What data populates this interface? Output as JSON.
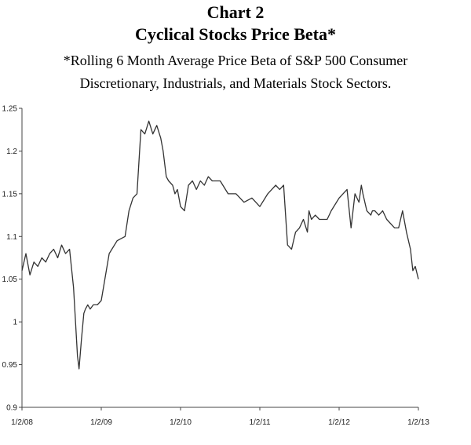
{
  "titles": {
    "line1": "Chart 2",
    "line2": "Cyclical Stocks Price Beta*",
    "line3": "*Rolling 6 Month Average Price Beta of S&P 500 Consumer",
    "line4": "Discretionary, Industrials, and Materials Stock Sectors."
  },
  "chart_data": {
    "type": "line",
    "title": "Cyclical Stocks Price Beta*",
    "subtitle": "*Rolling 6 Month Average Price Beta of S&P 500 Consumer Discretionary, Industrials, and Materials Stock Sectors.",
    "xlabel": "",
    "ylabel": "",
    "ylim": [
      0.9,
      1.25
    ],
    "yticks": [
      0.9,
      0.95,
      1,
      1.05,
      1.1,
      1.15,
      1.2,
      1.25
    ],
    "ytick_labels": [
      "0.9",
      "0.95",
      "1",
      "1.05",
      "1.1",
      "1.15",
      "1.2",
      "1.25"
    ],
    "xlim": [
      2008.0,
      2013.0
    ],
    "xticks": [
      2008,
      2009,
      2010,
      2011,
      2012,
      2013
    ],
    "xtick_labels": [
      "1/2/08",
      "1/2/09",
      "1/2/10",
      "1/2/11",
      "1/2/12",
      "1/2/13"
    ],
    "grid": false,
    "series": [
      {
        "x": [
          2008.0,
          2008.05,
          2008.1,
          2008.15,
          2008.2,
          2008.25,
          2008.3,
          2008.35,
          2008.4,
          2008.45,
          2008.5,
          2008.55,
          2008.6,
          2008.65,
          2008.7,
          2008.72,
          2008.75,
          2008.78,
          2008.8,
          2008.83,
          2008.86,
          2008.9,
          2008.95,
          2009.0,
          2009.1,
          2009.2,
          2009.3,
          2009.35,
          2009.4,
          2009.45,
          2009.5,
          2009.55,
          2009.6,
          2009.65,
          2009.7,
          2009.75,
          2009.78,
          2009.82,
          2009.85,
          2009.9,
          2009.93,
          2009.96,
          2010.0,
          2010.05,
          2010.1,
          2010.15,
          2010.2,
          2010.25,
          2010.3,
          2010.35,
          2010.4,
          2010.45,
          2010.5,
          2010.6,
          2010.7,
          2010.8,
          2010.9,
          2011.0,
          2011.1,
          2011.15,
          2011.2,
          2011.25,
          2011.3,
          2011.35,
          2011.4,
          2011.45,
          2011.5,
          2011.55,
          2011.6,
          2011.62,
          2011.65,
          2011.7,
          2011.75,
          2011.8,
          2011.85,
          2011.9,
          2012.0,
          2012.1,
          2012.15,
          2012.2,
          2012.25,
          2012.28,
          2012.3,
          2012.35,
          2012.4,
          2012.42,
          2012.45,
          2012.5,
          2012.55,
          2012.6,
          2012.7,
          2012.75,
          2012.8,
          2012.85,
          2012.9,
          2012.93,
          2012.96,
          2013.0
        ],
        "values": [
          1.06,
          1.08,
          1.055,
          1.07,
          1.065,
          1.075,
          1.07,
          1.08,
          1.085,
          1.075,
          1.09,
          1.08,
          1.085,
          1.04,
          0.96,
          0.945,
          0.98,
          1.01,
          1.015,
          1.02,
          1.015,
          1.02,
          1.02,
          1.025,
          1.08,
          1.095,
          1.1,
          1.13,
          1.145,
          1.15,
          1.225,
          1.22,
          1.235,
          1.22,
          1.23,
          1.215,
          1.2,
          1.17,
          1.165,
          1.16,
          1.15,
          1.155,
          1.135,
          1.13,
          1.16,
          1.165,
          1.155,
          1.165,
          1.16,
          1.17,
          1.165,
          1.165,
          1.165,
          1.15,
          1.15,
          1.14,
          1.145,
          1.135,
          1.15,
          1.155,
          1.16,
          1.155,
          1.16,
          1.09,
          1.085,
          1.105,
          1.11,
          1.12,
          1.105,
          1.13,
          1.12,
          1.125,
          1.12,
          1.12,
          1.12,
          1.13,
          1.145,
          1.155,
          1.11,
          1.15,
          1.14,
          1.16,
          1.15,
          1.13,
          1.125,
          1.13,
          1.13,
          1.125,
          1.13,
          1.12,
          1.11,
          1.11,
          1.13,
          1.105,
          1.085,
          1.06,
          1.065,
          1.05
        ]
      }
    ]
  }
}
